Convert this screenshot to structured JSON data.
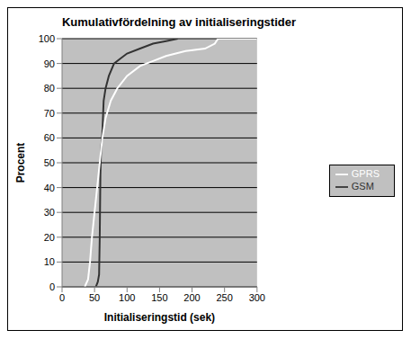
{
  "chart_data": {
    "type": "line",
    "title": "Kumulativfördelning av initialiseringstider",
    "x_label": "Initialiseringstid (sek)",
    "y_label": "Procent",
    "series": [
      {
        "name": "GSM",
        "color": "#333333",
        "x": [
          52,
          55,
          57,
          58,
          59,
          60,
          62,
          64,
          67,
          72,
          80,
          90,
          100,
          120,
          140,
          160,
          178
        ],
        "values": [
          0,
          2,
          5,
          20,
          45,
          55,
          62,
          75,
          80,
          85,
          90,
          92,
          94,
          96,
          98,
          99,
          100
        ]
      },
      {
        "name": "GPRS",
        "color": "#ffffff",
        "x": [
          35,
          40,
          43,
          46,
          50,
          54,
          58,
          62,
          67,
          75,
          85,
          100,
          120,
          140,
          160,
          190,
          220,
          235,
          240,
          300
        ],
        "values": [
          0,
          3,
          10,
          20,
          30,
          40,
          50,
          60,
          68,
          75,
          80,
          85,
          89,
          91,
          93,
          95,
          96,
          98,
          100,
          100
        ]
      }
    ],
    "xlim": [
      0,
      300
    ],
    "xticks": [
      0,
      50,
      100,
      150,
      200,
      250,
      300
    ],
    "ylim": [
      0,
      100
    ],
    "yticks": [
      0,
      10,
      20,
      30,
      40,
      50,
      60,
      70,
      80,
      90,
      100
    ],
    "grid": true,
    "legend": "right"
  }
}
